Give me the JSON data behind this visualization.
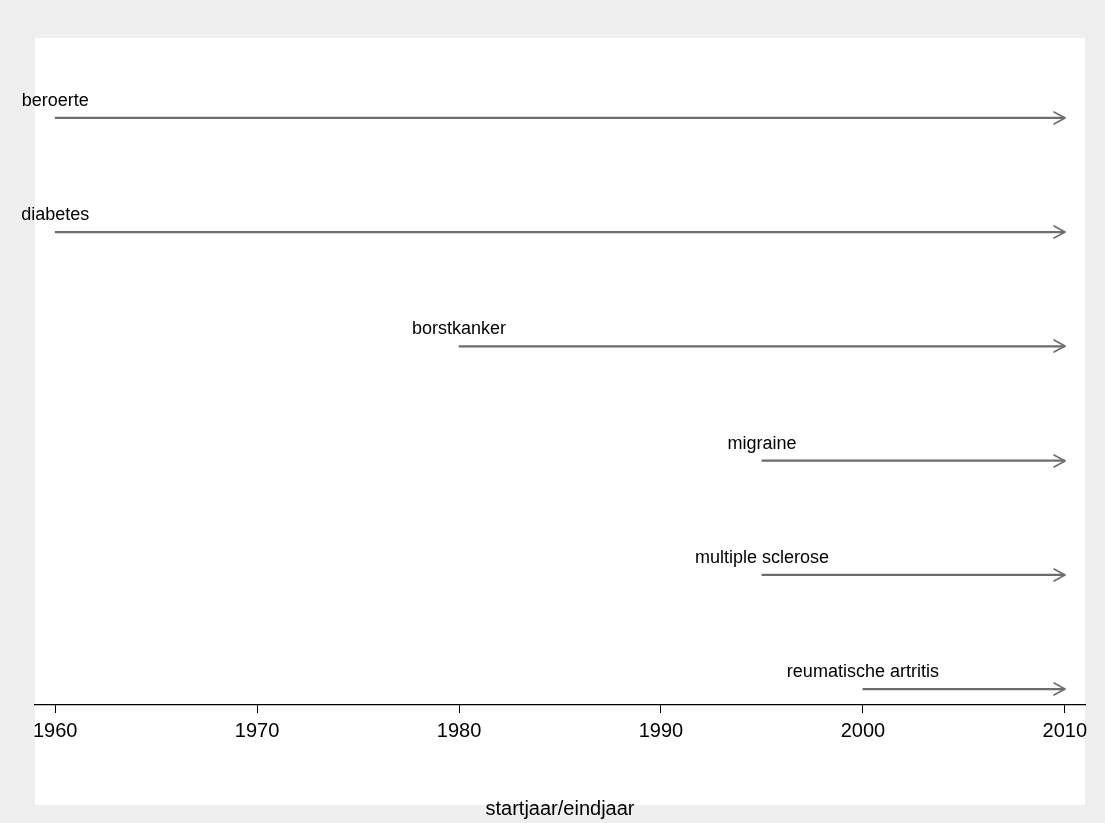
{
  "chart_data": {
    "type": "bar",
    "orientation": "horizontal",
    "categories": [
      "beroerte",
      "diabetes",
      "borstkanker",
      "migraine",
      "multiple sclerose",
      "reumatische artritis"
    ],
    "base": [
      1960,
      1960,
      1980,
      1995,
      1995,
      2000
    ],
    "values": [
      50,
      50,
      30,
      15,
      15,
      10
    ],
    "color": "#6d6d6d",
    "xlim": [
      1959,
      2011
    ],
    "xticks": [
      1960,
      1970,
      1980,
      1990,
      2000,
      2010
    ],
    "xlabel": "startjaar/eindjaar",
    "tick_labels": "x",
    "grid": false,
    "legend": false
  }
}
